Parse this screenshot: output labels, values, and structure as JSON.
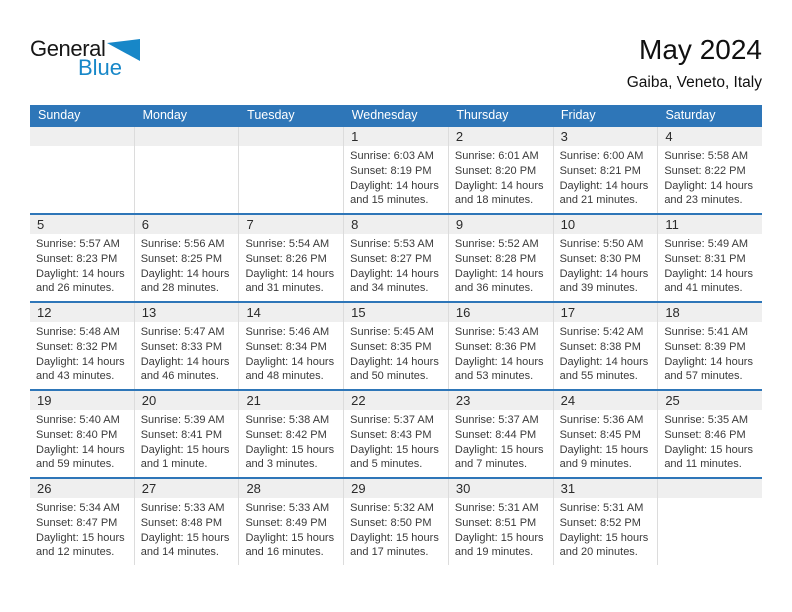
{
  "logo": {
    "text_general": "General",
    "text_blue": "Blue"
  },
  "header": {
    "title": "May 2024",
    "subtitle": "Gaiba, Veneto, Italy"
  },
  "colors": {
    "header_bar": "#2e76b8",
    "row_divider": "#2e76b8",
    "date_band": "#efefef",
    "cell_divider": "#dcdcdc",
    "logo_blue": "#1787c8"
  },
  "weekdays": [
    "Sunday",
    "Monday",
    "Tuesday",
    "Wednesday",
    "Thursday",
    "Friday",
    "Saturday"
  ],
  "weeks": [
    [
      null,
      null,
      null,
      {
        "date": "1",
        "sunrise": "Sunrise: 6:03 AM",
        "sunset": "Sunset: 8:19 PM",
        "daylight_line1": "Daylight: 14 hours",
        "daylight_line2": "and 15 minutes."
      },
      {
        "date": "2",
        "sunrise": "Sunrise: 6:01 AM",
        "sunset": "Sunset: 8:20 PM",
        "daylight_line1": "Daylight: 14 hours",
        "daylight_line2": "and 18 minutes."
      },
      {
        "date": "3",
        "sunrise": "Sunrise: 6:00 AM",
        "sunset": "Sunset: 8:21 PM",
        "daylight_line1": "Daylight: 14 hours",
        "daylight_line2": "and 21 minutes."
      },
      {
        "date": "4",
        "sunrise": "Sunrise: 5:58 AM",
        "sunset": "Sunset: 8:22 PM",
        "daylight_line1": "Daylight: 14 hours",
        "daylight_line2": "and 23 minutes."
      }
    ],
    [
      {
        "date": "5",
        "sunrise": "Sunrise: 5:57 AM",
        "sunset": "Sunset: 8:23 PM",
        "daylight_line1": "Daylight: 14 hours",
        "daylight_line2": "and 26 minutes."
      },
      {
        "date": "6",
        "sunrise": "Sunrise: 5:56 AM",
        "sunset": "Sunset: 8:25 PM",
        "daylight_line1": "Daylight: 14 hours",
        "daylight_line2": "and 28 minutes."
      },
      {
        "date": "7",
        "sunrise": "Sunrise: 5:54 AM",
        "sunset": "Sunset: 8:26 PM",
        "daylight_line1": "Daylight: 14 hours",
        "daylight_line2": "and 31 minutes."
      },
      {
        "date": "8",
        "sunrise": "Sunrise: 5:53 AM",
        "sunset": "Sunset: 8:27 PM",
        "daylight_line1": "Daylight: 14 hours",
        "daylight_line2": "and 34 minutes."
      },
      {
        "date": "9",
        "sunrise": "Sunrise: 5:52 AM",
        "sunset": "Sunset: 8:28 PM",
        "daylight_line1": "Daylight: 14 hours",
        "daylight_line2": "and 36 minutes."
      },
      {
        "date": "10",
        "sunrise": "Sunrise: 5:50 AM",
        "sunset": "Sunset: 8:30 PM",
        "daylight_line1": "Daylight: 14 hours",
        "daylight_line2": "and 39 minutes."
      },
      {
        "date": "11",
        "sunrise": "Sunrise: 5:49 AM",
        "sunset": "Sunset: 8:31 PM",
        "daylight_line1": "Daylight: 14 hours",
        "daylight_line2": "and 41 minutes."
      }
    ],
    [
      {
        "date": "12",
        "sunrise": "Sunrise: 5:48 AM",
        "sunset": "Sunset: 8:32 PM",
        "daylight_line1": "Daylight: 14 hours",
        "daylight_line2": "and 43 minutes."
      },
      {
        "date": "13",
        "sunrise": "Sunrise: 5:47 AM",
        "sunset": "Sunset: 8:33 PM",
        "daylight_line1": "Daylight: 14 hours",
        "daylight_line2": "and 46 minutes."
      },
      {
        "date": "14",
        "sunrise": "Sunrise: 5:46 AM",
        "sunset": "Sunset: 8:34 PM",
        "daylight_line1": "Daylight: 14 hours",
        "daylight_line2": "and 48 minutes."
      },
      {
        "date": "15",
        "sunrise": "Sunrise: 5:45 AM",
        "sunset": "Sunset: 8:35 PM",
        "daylight_line1": "Daylight: 14 hours",
        "daylight_line2": "and 50 minutes."
      },
      {
        "date": "16",
        "sunrise": "Sunrise: 5:43 AM",
        "sunset": "Sunset: 8:36 PM",
        "daylight_line1": "Daylight: 14 hours",
        "daylight_line2": "and 53 minutes."
      },
      {
        "date": "17",
        "sunrise": "Sunrise: 5:42 AM",
        "sunset": "Sunset: 8:38 PM",
        "daylight_line1": "Daylight: 14 hours",
        "daylight_line2": "and 55 minutes."
      },
      {
        "date": "18",
        "sunrise": "Sunrise: 5:41 AM",
        "sunset": "Sunset: 8:39 PM",
        "daylight_line1": "Daylight: 14 hours",
        "daylight_line2": "and 57 minutes."
      }
    ],
    [
      {
        "date": "19",
        "sunrise": "Sunrise: 5:40 AM",
        "sunset": "Sunset: 8:40 PM",
        "daylight_line1": "Daylight: 14 hours",
        "daylight_line2": "and 59 minutes."
      },
      {
        "date": "20",
        "sunrise": "Sunrise: 5:39 AM",
        "sunset": "Sunset: 8:41 PM",
        "daylight_line1": "Daylight: 15 hours",
        "daylight_line2": "and 1 minute."
      },
      {
        "date": "21",
        "sunrise": "Sunrise: 5:38 AM",
        "sunset": "Sunset: 8:42 PM",
        "daylight_line1": "Daylight: 15 hours",
        "daylight_line2": "and 3 minutes."
      },
      {
        "date": "22",
        "sunrise": "Sunrise: 5:37 AM",
        "sunset": "Sunset: 8:43 PM",
        "daylight_line1": "Daylight: 15 hours",
        "daylight_line2": "and 5 minutes."
      },
      {
        "date": "23",
        "sunrise": "Sunrise: 5:37 AM",
        "sunset": "Sunset: 8:44 PM",
        "daylight_line1": "Daylight: 15 hours",
        "daylight_line2": "and 7 minutes."
      },
      {
        "date": "24",
        "sunrise": "Sunrise: 5:36 AM",
        "sunset": "Sunset: 8:45 PM",
        "daylight_line1": "Daylight: 15 hours",
        "daylight_line2": "and 9 minutes."
      },
      {
        "date": "25",
        "sunrise": "Sunrise: 5:35 AM",
        "sunset": "Sunset: 8:46 PM",
        "daylight_line1": "Daylight: 15 hours",
        "daylight_line2": "and 11 minutes."
      }
    ],
    [
      {
        "date": "26",
        "sunrise": "Sunrise: 5:34 AM",
        "sunset": "Sunset: 8:47 PM",
        "daylight_line1": "Daylight: 15 hours",
        "daylight_line2": "and 12 minutes."
      },
      {
        "date": "27",
        "sunrise": "Sunrise: 5:33 AM",
        "sunset": "Sunset: 8:48 PM",
        "daylight_line1": "Daylight: 15 hours",
        "daylight_line2": "and 14 minutes."
      },
      {
        "date": "28",
        "sunrise": "Sunrise: 5:33 AM",
        "sunset": "Sunset: 8:49 PM",
        "daylight_line1": "Daylight: 15 hours",
        "daylight_line2": "and 16 minutes."
      },
      {
        "date": "29",
        "sunrise": "Sunrise: 5:32 AM",
        "sunset": "Sunset: 8:50 PM",
        "daylight_line1": "Daylight: 15 hours",
        "daylight_line2": "and 17 minutes."
      },
      {
        "date": "30",
        "sunrise": "Sunrise: 5:31 AM",
        "sunset": "Sunset: 8:51 PM",
        "daylight_line1": "Daylight: 15 hours",
        "daylight_line2": "and 19 minutes."
      },
      {
        "date": "31",
        "sunrise": "Sunrise: 5:31 AM",
        "sunset": "Sunset: 8:52 PM",
        "daylight_line1": "Daylight: 15 hours",
        "daylight_line2": "and 20 minutes."
      },
      null
    ]
  ]
}
